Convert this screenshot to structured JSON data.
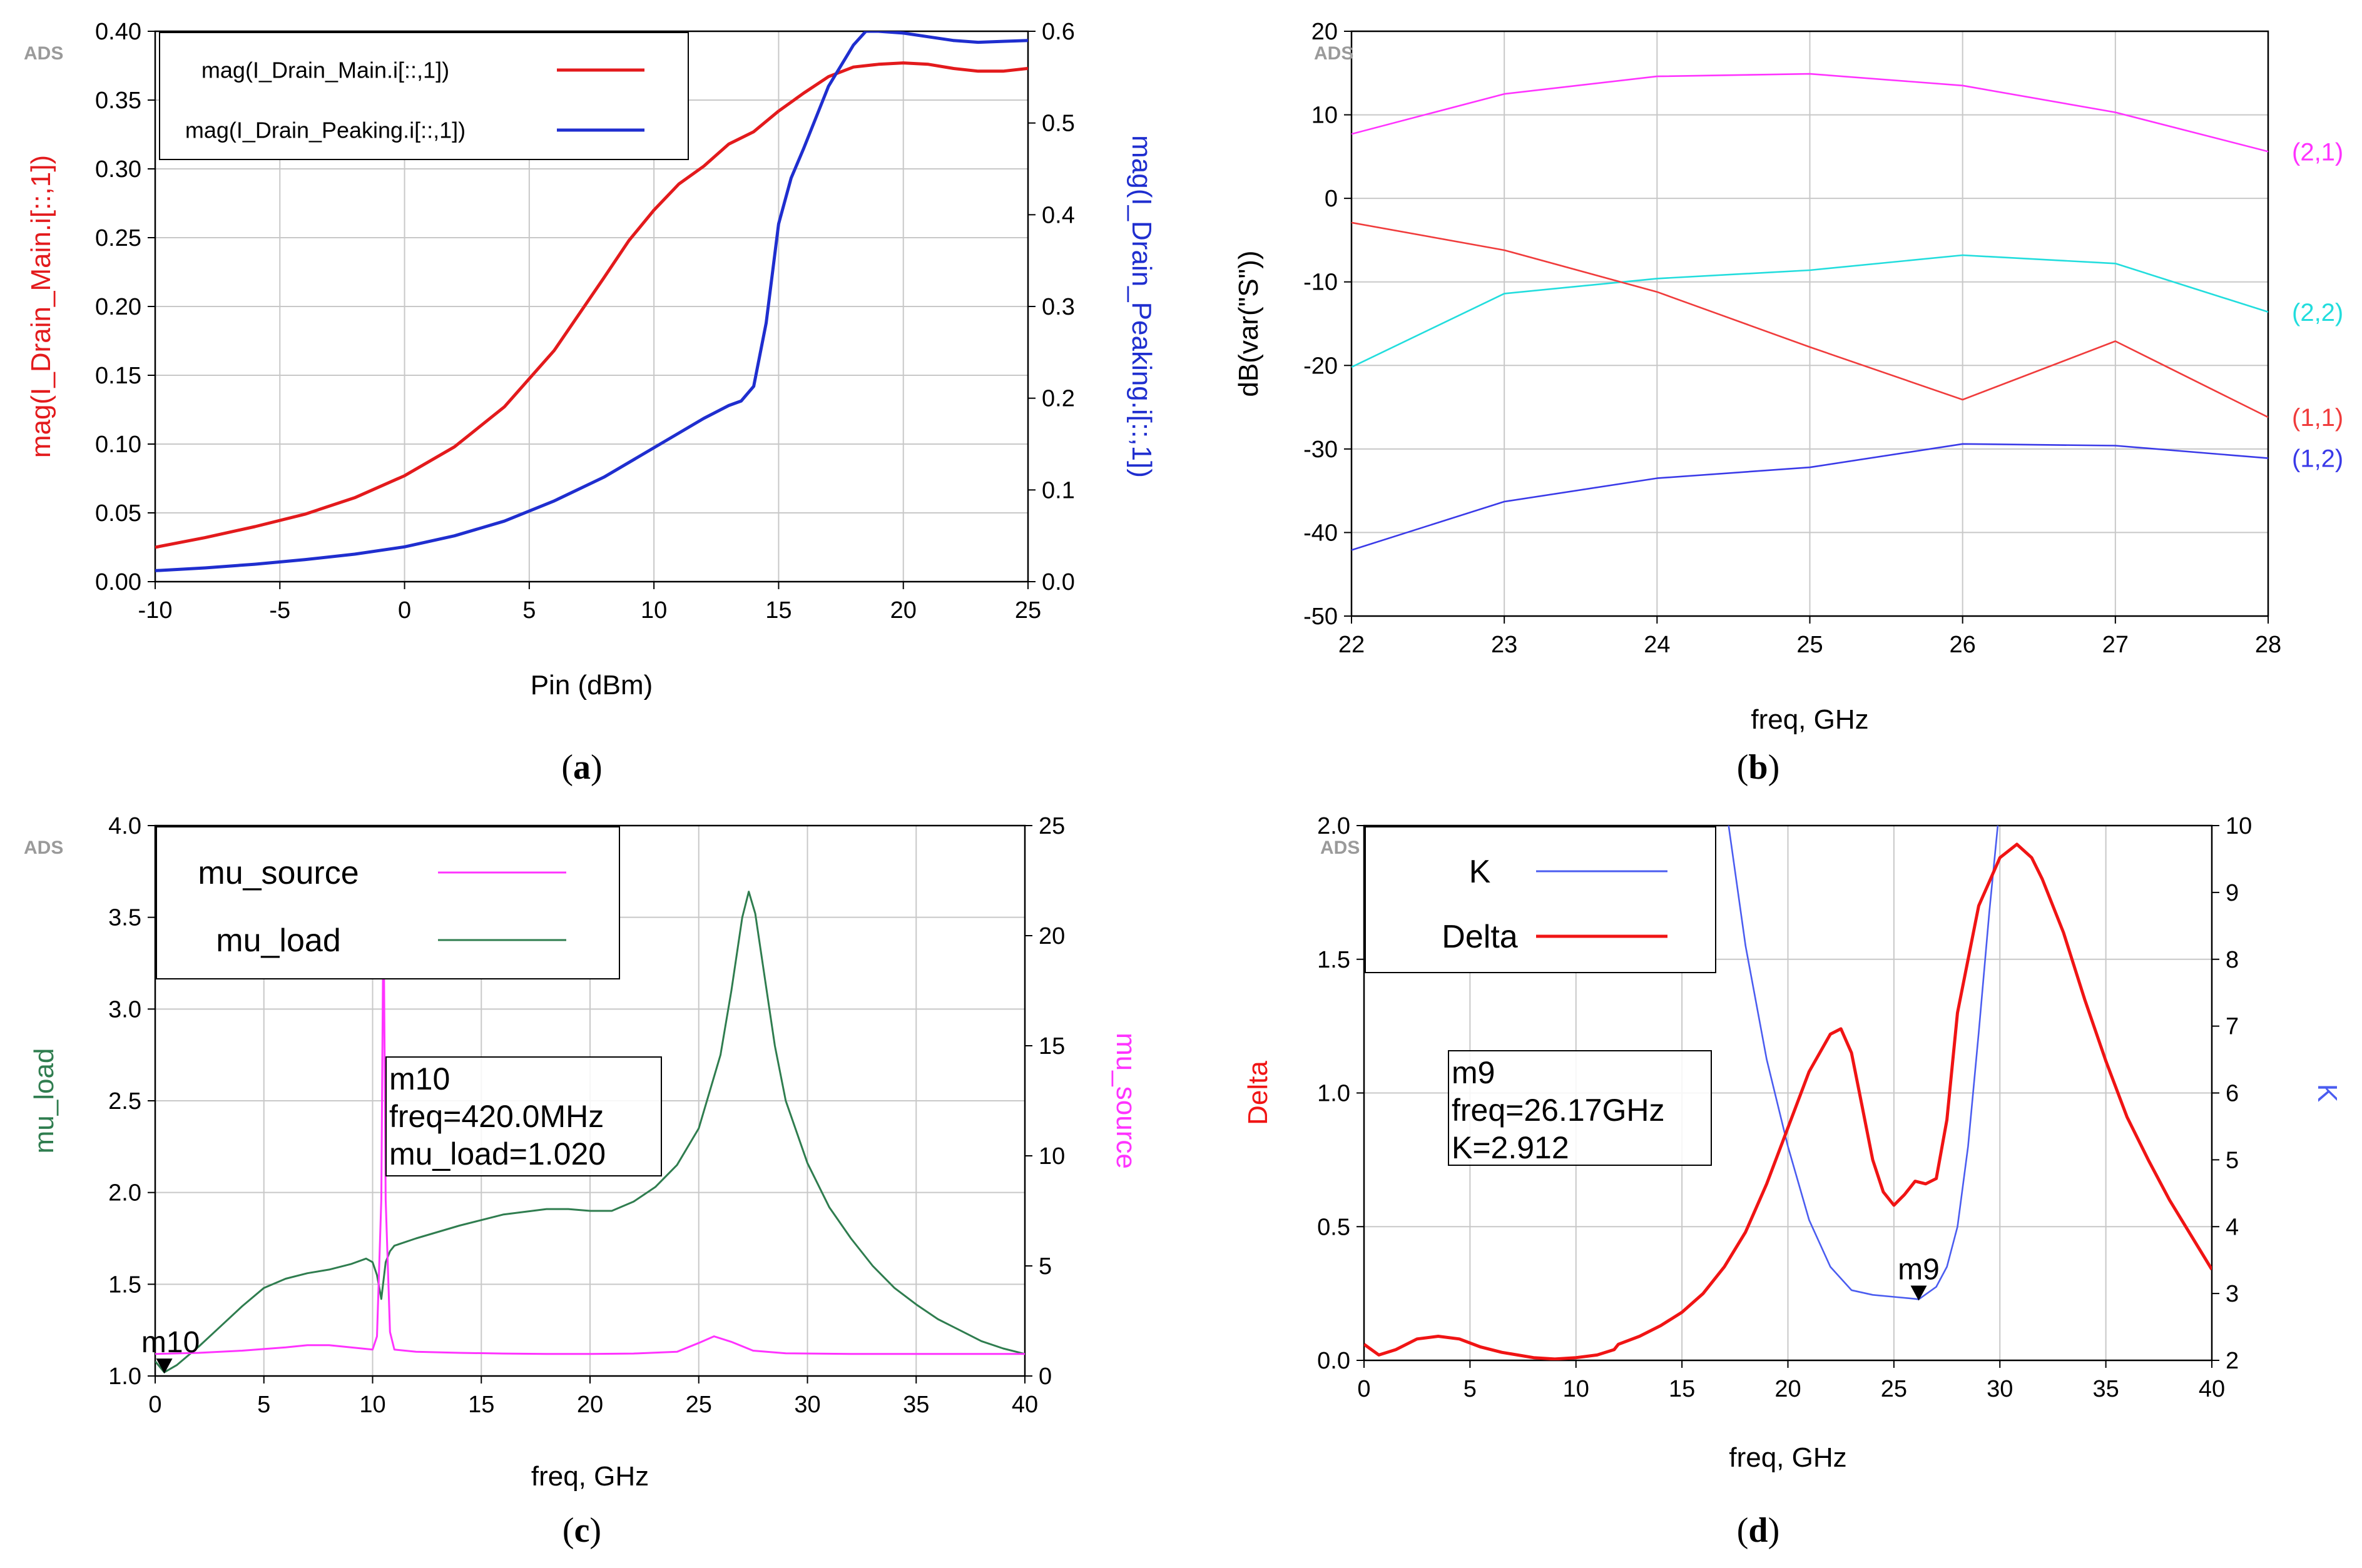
{
  "panels": [
    {
      "id": "a",
      "caption_letter": "a",
      "chart_data": {
        "type": "line",
        "watermark": "ADS",
        "xlabel": "Pin (dBm)",
        "ylabel_left": "mag(I_Drain_Main.i[::,1])",
        "ylabel_right": "mag(I_Drain_Peaking.i[::,1])",
        "xlim": [
          -10,
          25
        ],
        "ylim_left": [
          0,
          0.4
        ],
        "ylim_right": [
          0,
          0.6
        ],
        "x_ticks": [
          "-10",
          "-5",
          "0",
          "5",
          "10",
          "15",
          "20",
          "25"
        ],
        "y_ticks_left": [
          "0.00",
          "0.05",
          "0.10",
          "0.15",
          "0.20",
          "0.25",
          "0.30",
          "0.35",
          "0.40"
        ],
        "y_ticks_right": [
          "0.0",
          "0.1",
          "0.2",
          "0.3",
          "0.4",
          "0.5",
          "0.6"
        ],
        "legend": [
          {
            "label": "mag(I_Drain_Main.i[::,1])",
            "color": "#e31a1c"
          },
          {
            "label": "mag(I_Drain_Peaking.i[::,1])",
            "color": "#1f2ecf"
          }
        ],
        "series": [
          {
            "name": "mag(I_Drain_Main.i[::,1])",
            "axis": "left",
            "color": "#e31a1c",
            "x": [
              -10,
              -8,
              -6,
              -4,
              -2,
              0,
              2,
              4,
              6,
              8,
              9,
              10,
              11,
              12,
              13,
              14,
              15,
              16,
              17,
              18,
              19,
              20,
              21,
              22,
              23,
              24,
              25
            ],
            "y": [
              0.025,
              0.032,
              0.04,
              0.049,
              0.061,
              0.077,
              0.098,
              0.127,
              0.168,
              0.221,
              0.248,
              0.27,
              0.289,
              0.302,
              0.318,
              0.327,
              0.342,
              0.355,
              0.367,
              0.374,
              0.376,
              0.377,
              0.376,
              0.373,
              0.371,
              0.371,
              0.373
            ]
          },
          {
            "name": "mag(I_Drain_Peaking.i[::,1])",
            "axis": "right",
            "color": "#1f2ecf",
            "x": [
              -10,
              -8,
              -6,
              -4,
              -2,
              0,
              2,
              4,
              6,
              8,
              10,
              12,
              13,
              13.5,
              14,
              14.5,
              15,
              15.5,
              16,
              17,
              18,
              18.5,
              19,
              20,
              21,
              22,
              23,
              24,
              25
            ],
            "y": [
              0.012,
              0.015,
              0.019,
              0.024,
              0.03,
              0.038,
              0.05,
              0.066,
              0.088,
              0.114,
              0.146,
              0.178,
              0.192,
              0.197,
              0.213,
              0.282,
              0.39,
              0.44,
              0.472,
              0.54,
              0.585,
              0.6,
              0.6,
              0.598,
              0.594,
              0.59,
              0.588,
              0.589,
              0.59
            ]
          }
        ]
      }
    },
    {
      "id": "b",
      "caption_letter": "b",
      "chart_data": {
        "type": "line",
        "watermark": "ADS",
        "xlabel": "freq, GHz",
        "ylabel": "dB(var(\"S\"))",
        "xlim": [
          22,
          28
        ],
        "ylim": [
          -50,
          20
        ],
        "x_ticks": [
          "22",
          "23",
          "24",
          "25",
          "26",
          "27",
          "28"
        ],
        "y_ticks": [
          "-50",
          "-40",
          "-30",
          "-20",
          "-10",
          "0",
          "10",
          "20"
        ],
        "series": [
          {
            "name": "(2,1)",
            "color": "#ff33ff",
            "x": [
              22,
              23,
              24,
              25,
              26,
              27,
              28
            ],
            "y": [
              7.7,
              12.5,
              14.6,
              14.9,
              13.5,
              10.3,
              5.6
            ]
          },
          {
            "name": "(2,2)",
            "color": "#22dddd",
            "x": [
              22,
              23,
              24,
              25,
              26,
              27,
              28
            ],
            "y": [
              -20.2,
              -11.4,
              -9.6,
              -8.6,
              -6.8,
              -7.8,
              -13.6
            ]
          },
          {
            "name": "(1,1)",
            "color": "#f03c3c",
            "x": [
              22,
              23,
              24,
              25,
              26,
              27,
              28
            ],
            "y": [
              -2.9,
              -6.2,
              -11.2,
              -17.8,
              -24.1,
              -17.1,
              -26.2
            ]
          },
          {
            "name": "(1,2)",
            "color": "#3a3ae8",
            "x": [
              22,
              23,
              24,
              25,
              26,
              27,
              28
            ],
            "y": [
              -42.1,
              -36.3,
              -33.5,
              -32.2,
              -29.4,
              -29.6,
              -31.1
            ]
          }
        ]
      }
    },
    {
      "id": "c",
      "caption_letter": "c",
      "chart_data": {
        "type": "line",
        "watermark": "ADS",
        "xlabel": "freq, GHz",
        "ylabel_left": "mu_load",
        "ylabel_right": "mu_source",
        "xlim": [
          0,
          40
        ],
        "ylim_left": [
          1.0,
          4.0
        ],
        "ylim_right": [
          0,
          25
        ],
        "x_ticks": [
          "0",
          "5",
          "10",
          "15",
          "20",
          "25",
          "30",
          "35",
          "40"
        ],
        "y_ticks_left": [
          "1.0",
          "1.5",
          "2.0",
          "2.5",
          "3.0",
          "3.5",
          "4.0"
        ],
        "y_ticks_right": [
          "0",
          "5",
          "10",
          "15",
          "20",
          "25"
        ],
        "legend": [
          {
            "label": "mu_source",
            "color": "#ff33ff"
          },
          {
            "label": "mu_load",
            "color": "#2f7d4f"
          }
        ],
        "marker": {
          "name": "m10",
          "x": 0.42,
          "y": 1.02,
          "lines": [
            "m10",
            "freq=420.0MHz",
            "mu_load=1.020"
          ]
        },
        "series": [
          {
            "name": "mu_load",
            "axis": "left",
            "color": "#2f7d4f",
            "x": [
              0,
              0.42,
              1,
              2,
              3,
              4,
              5,
              6,
              7,
              8,
              9,
              9.7,
              10,
              10.2,
              10.4,
              10.5,
              10.6,
              10.8,
              11,
              12,
              14,
              16,
              18,
              19,
              20,
              21,
              22,
              23,
              24,
              25,
              26,
              26.5,
              27,
              27.3,
              27.6,
              28,
              28.5,
              29,
              30,
              31,
              32,
              33,
              34,
              35,
              36,
              37,
              38,
              39,
              40
            ],
            "y": [
              1.08,
              1.02,
              1.06,
              1.16,
              1.27,
              1.38,
              1.48,
              1.53,
              1.56,
              1.58,
              1.61,
              1.64,
              1.62,
              1.55,
              1.42,
              1.52,
              1.62,
              1.68,
              1.71,
              1.75,
              1.82,
              1.88,
              1.91,
              1.91,
              1.9,
              1.9,
              1.95,
              2.03,
              2.15,
              2.35,
              2.75,
              3.1,
              3.5,
              3.64,
              3.52,
              3.2,
              2.8,
              2.5,
              2.16,
              1.92,
              1.75,
              1.6,
              1.48,
              1.39,
              1.31,
              1.25,
              1.19,
              1.15,
              1.12
            ]
          },
          {
            "name": "mu_source",
            "axis": "right",
            "color": "#ff33ff",
            "x": [
              0,
              2,
              4,
              6,
              7,
              8,
              9,
              10,
              10.2,
              10.4,
              10.5,
              10.6,
              10.8,
              11,
              12,
              14,
              16,
              18,
              20,
              22,
              24,
              25,
              25.7,
              26.5,
              27.5,
              29,
              32,
              35,
              38,
              40
            ],
            "y": [
              1.0,
              1.05,
              1.15,
              1.3,
              1.4,
              1.4,
              1.3,
              1.2,
              1.8,
              8.0,
              21.5,
              8.0,
              2.0,
              1.2,
              1.1,
              1.05,
              1.02,
              1.0,
              1.0,
              1.02,
              1.1,
              1.5,
              1.8,
              1.55,
              1.15,
              1.03,
              1.0,
              1.0,
              1.0,
              1.0
            ]
          }
        ]
      }
    },
    {
      "id": "d",
      "caption_letter": "d",
      "chart_data": {
        "type": "line",
        "watermark": "ADS",
        "xlabel": "freq, GHz",
        "ylabel_left": "Delta",
        "ylabel_right": "K",
        "xlim": [
          0,
          40
        ],
        "ylim_left": [
          0,
          2.0
        ],
        "ylim_right": [
          2,
          10
        ],
        "x_ticks": [
          "0",
          "5",
          "10",
          "15",
          "20",
          "25",
          "30",
          "35",
          "40"
        ],
        "y_ticks_left": [
          "0.0",
          "0.5",
          "1.0",
          "1.5",
          "2.0"
        ],
        "y_ticks_right": [
          "2",
          "3",
          "4",
          "5",
          "6",
          "7",
          "8",
          "9",
          "10"
        ],
        "legend": [
          {
            "label": "K",
            "color": "#4a5cf0"
          },
          {
            "label": "Delta",
            "color": "#f01414"
          }
        ],
        "marker": {
          "name": "m9",
          "x": 26.17,
          "y": 2.912,
          "lines": [
            "m9",
            "freq=26.17GHz",
            "K=2.912"
          ]
        },
        "series": [
          {
            "name": "K",
            "axis": "right",
            "color": "#4a5cf0",
            "x": [
              17.2,
              18,
              19,
              20,
              21,
              22,
              23,
              24,
              25,
              26,
              26.17,
              27,
              27.5,
              28,
              28.5,
              29,
              29.5,
              29.9
            ],
            "y": [
              10.0,
              8.2,
              6.5,
              5.2,
              4.1,
              3.4,
              3.05,
              2.98,
              2.95,
              2.92,
              2.912,
              3.1,
              3.4,
              4.0,
              5.2,
              6.9,
              8.7,
              10.0
            ]
          },
          {
            "name": "Delta",
            "axis": "left",
            "color": "#f01414",
            "x": [
              0,
              0.7,
              1.5,
              2.5,
              3.5,
              4.5,
              5.5,
              6.5,
              8,
              9,
              10,
              11,
              11.8,
              12,
              13,
              14,
              15,
              16,
              17,
              18,
              19,
              20,
              21,
              22,
              22.5,
              23,
              23.5,
              24,
              24.5,
              25,
              25.5,
              26,
              26.5,
              27,
              27.5,
              28,
              29,
              30,
              30.8,
              31.5,
              32,
              33,
              34,
              35,
              36,
              37,
              38,
              39,
              40
            ],
            "y": [
              0.06,
              0.02,
              0.04,
              0.08,
              0.09,
              0.08,
              0.05,
              0.03,
              0.01,
              0.005,
              0.01,
              0.02,
              0.04,
              0.06,
              0.09,
              0.13,
              0.18,
              0.25,
              0.35,
              0.48,
              0.66,
              0.87,
              1.08,
              1.22,
              1.24,
              1.15,
              0.95,
              0.75,
              0.63,
              0.58,
              0.62,
              0.67,
              0.66,
              0.68,
              0.9,
              1.3,
              1.7,
              1.88,
              1.93,
              1.88,
              1.8,
              1.6,
              1.35,
              1.12,
              0.91,
              0.75,
              0.6,
              0.47,
              0.34
            ]
          }
        ]
      }
    }
  ]
}
